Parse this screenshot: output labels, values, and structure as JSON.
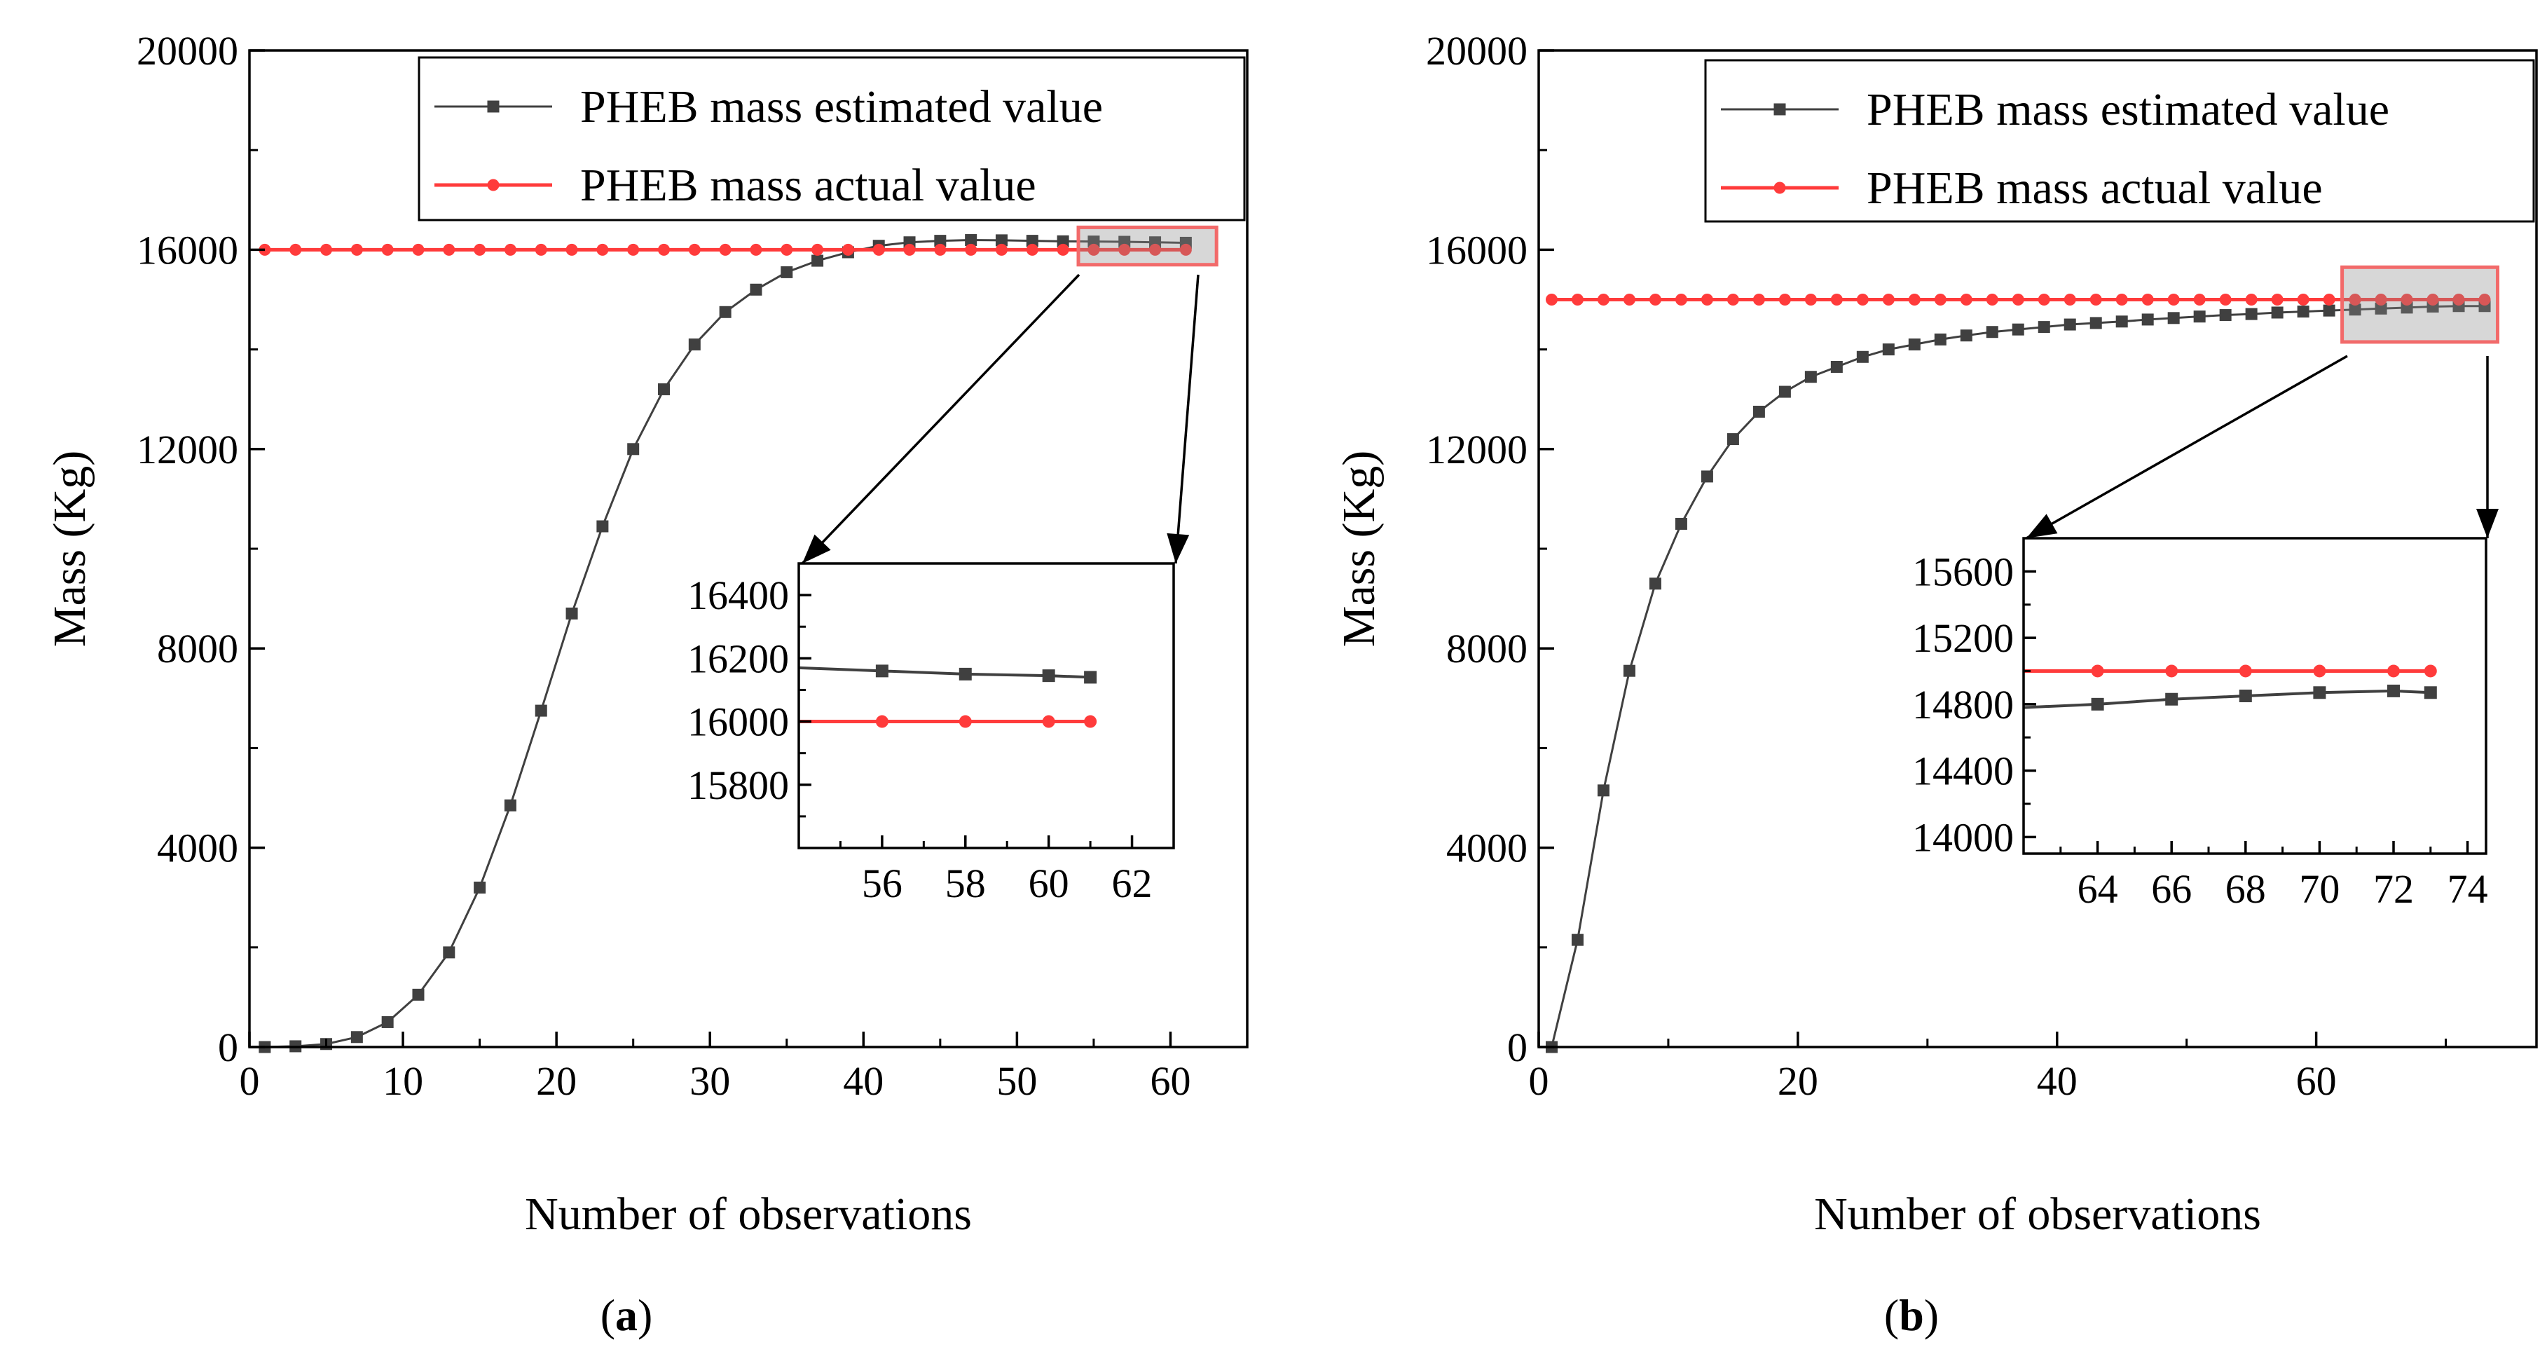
{
  "chart_data": [
    {
      "type": "line",
      "panel_label": "(a)",
      "panel_letter": "a",
      "xlabel": "Number of observations",
      "ylabel": "Mass (Kg)",
      "xlim": [
        0,
        65
      ],
      "ylim": [
        0,
        20000
      ],
      "xticks": [
        0,
        10,
        20,
        30,
        40,
        50,
        60
      ],
      "yticks": [
        0,
        4000,
        8000,
        12000,
        16000,
        20000
      ],
      "legend": {
        "position": "top-right",
        "entries": [
          "PHEB mass estimated value",
          "PHEB mass actual value"
        ]
      },
      "series": [
        {
          "name": "PHEB mass estimated value",
          "color": "#404040",
          "marker": "square",
          "x": [
            1,
            3,
            5,
            7,
            9,
            11,
            13,
            15,
            17,
            19,
            21,
            23,
            25,
            27,
            29,
            31,
            33,
            35,
            37,
            39,
            41,
            43,
            45,
            47,
            49,
            51,
            53,
            55,
            57,
            59,
            61
          ],
          "y": [
            0,
            15,
            60,
            200,
            500,
            1050,
            1900,
            3200,
            4850,
            6750,
            8700,
            10450,
            12000,
            13200,
            14100,
            14750,
            15200,
            15550,
            15780,
            15950,
            16080,
            16150,
            16180,
            16195,
            16190,
            16180,
            16170,
            16165,
            16160,
            16150,
            16140
          ]
        },
        {
          "name": "PHEB mass actual value",
          "color": "#ff3b3b",
          "marker": "circle",
          "x": [
            1,
            3,
            5,
            7,
            9,
            11,
            13,
            15,
            17,
            19,
            21,
            23,
            25,
            27,
            29,
            31,
            33,
            35,
            37,
            39,
            41,
            43,
            45,
            47,
            49,
            51,
            53,
            55,
            57,
            59,
            61
          ],
          "y": [
            16000,
            16000,
            16000,
            16000,
            16000,
            16000,
            16000,
            16000,
            16000,
            16000,
            16000,
            16000,
            16000,
            16000,
            16000,
            16000,
            16000,
            16000,
            16000,
            16000,
            16000,
            16000,
            16000,
            16000,
            16000,
            16000,
            16000,
            16000,
            16000,
            16000,
            16000
          ]
        }
      ],
      "zoom_region": {
        "x": [
          54,
          63
        ],
        "y": [
          15700,
          16450
        ]
      },
      "inset": {
        "xlim": [
          54,
          63
        ],
        "ylim": [
          15600,
          16500
        ],
        "xticks": [
          56,
          58,
          60,
          62
        ],
        "yticks": [
          15800,
          16000,
          16200,
          16400
        ],
        "series": [
          {
            "name": "PHEB mass estimated value",
            "x": [
              54,
              56,
              58,
              60,
              61
            ],
            "y": [
              16170,
              16160,
              16150,
              16145,
              16140
            ],
            "marker_x": [
              56,
              58,
              60,
              61
            ]
          },
          {
            "name": "PHEB mass actual value",
            "x": [
              54,
              56,
              58,
              60,
              61
            ],
            "y": [
              16000,
              16000,
              16000,
              16000,
              16000
            ],
            "marker_x": [
              56,
              58,
              60,
              61
            ]
          }
        ]
      }
    },
    {
      "type": "line",
      "panel_label": "(b)",
      "panel_letter": "b",
      "xlabel": "Number of observations",
      "ylabel": "Mass (Kg)",
      "xlim": [
        0,
        77
      ],
      "ylim": [
        0,
        20000
      ],
      "xticks": [
        0,
        20,
        40,
        60
      ],
      "yticks": [
        0,
        4000,
        8000,
        12000,
        16000,
        20000
      ],
      "legend": {
        "position": "top-right",
        "entries": [
          "PHEB mass estimated value",
          "PHEB mass actual value"
        ]
      },
      "series": [
        {
          "name": "PHEB mass estimated value",
          "color": "#404040",
          "marker": "square",
          "x": [
            1,
            3,
            5,
            7,
            9,
            11,
            13,
            15,
            17,
            19,
            21,
            23,
            25,
            27,
            29,
            31,
            33,
            35,
            37,
            39,
            41,
            43,
            45,
            47,
            49,
            51,
            53,
            55,
            57,
            59,
            61,
            63,
            65,
            67,
            69,
            71,
            73
          ],
          "y": [
            0,
            2150,
            5150,
            7550,
            9300,
            10500,
            11450,
            12200,
            12750,
            13150,
            13450,
            13650,
            13850,
            14000,
            14100,
            14200,
            14280,
            14350,
            14400,
            14450,
            14500,
            14530,
            14560,
            14600,
            14630,
            14660,
            14690,
            14710,
            14740,
            14760,
            14780,
            14800,
            14820,
            14840,
            14860,
            14870,
            14870
          ]
        },
        {
          "name": "PHEB mass actual value",
          "color": "#ff3b3b",
          "marker": "circle",
          "x": [
            1,
            3,
            5,
            7,
            9,
            11,
            13,
            15,
            17,
            19,
            21,
            23,
            25,
            27,
            29,
            31,
            33,
            35,
            37,
            39,
            41,
            43,
            45,
            47,
            49,
            51,
            53,
            55,
            57,
            59,
            61,
            63,
            65,
            67,
            69,
            71,
            73
          ],
          "y": [
            15000,
            15000,
            15000,
            15000,
            15000,
            15000,
            15000,
            15000,
            15000,
            15000,
            15000,
            15000,
            15000,
            15000,
            15000,
            15000,
            15000,
            15000,
            15000,
            15000,
            15000,
            15000,
            15000,
            15000,
            15000,
            15000,
            15000,
            15000,
            15000,
            15000,
            15000,
            15000,
            15000,
            15000,
            15000,
            15000,
            15000
          ]
        }
      ],
      "zoom_region": {
        "x": [
          62,
          74
        ],
        "y": [
          14150,
          15650
        ]
      },
      "inset": {
        "xlim": [
          62,
          74.5
        ],
        "ylim": [
          13900,
          15800
        ],
        "xticks": [
          64,
          66,
          68,
          70,
          72,
          74
        ],
        "yticks": [
          14000,
          14400,
          14800,
          15200,
          15600
        ],
        "series": [
          {
            "name": "PHEB mass estimated value",
            "x": [
              62,
              64,
              66,
              68,
              70,
              72,
              73
            ],
            "y": [
              14780,
              14800,
              14830,
              14850,
              14870,
              14880,
              14870
            ],
            "marker_x": [
              64,
              66,
              68,
              70,
              72,
              73
            ]
          },
          {
            "name": "PHEB mass actual value",
            "x": [
              62,
              64,
              66,
              68,
              70,
              72,
              73
            ],
            "y": [
              15000,
              15000,
              15000,
              15000,
              15000,
              15000,
              15000
            ],
            "marker_x": [
              64,
              66,
              68,
              70,
              72,
              73
            ]
          }
        ]
      }
    }
  ]
}
